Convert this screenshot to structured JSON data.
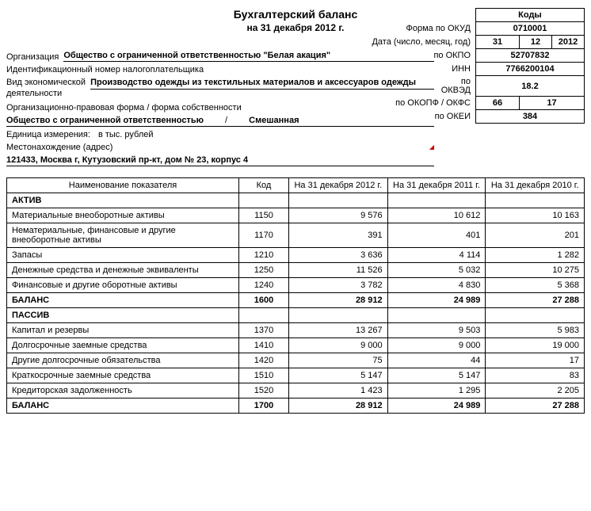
{
  "title": "Бухгалтерский баланс",
  "subtitle": "на 31 декабря 2012 г.",
  "codes_header": "Коды",
  "labels": {
    "form_okud": "Форма по ОКУД",
    "date": "Дата (число, месяц, год)",
    "org": "Организация",
    "okpo": "по ОКПО",
    "inn_label": "Идентификационный номер налогоплательщика",
    "inn": "ИНН",
    "activity1": "Вид экономической",
    "activity2": "деятельности",
    "okved_by": "по",
    "okved": "ОКВЭД",
    "legal_form": "Организационно-правовая форма / форма собственности",
    "okopf_okfs": "по ОКОПФ / ОКФС",
    "unit": "Единица измерения:",
    "okei": "по ОКЕИ",
    "address": "Местонахождение (адрес)"
  },
  "values": {
    "okud": "0710001",
    "date_d": "31",
    "date_m": "12",
    "date_y": "2012",
    "org_name": "Общество с ограниченной ответственностью \"Белая акация\"",
    "okpo": "52707832",
    "inn": "7766200104",
    "activity": "Производство одежды из текстильных материалов и аксессуаров одежды",
    "okved": "18.2",
    "legal_form_value": "Общество с ограниченной ответственностью",
    "ownership_sep": "/",
    "ownership": "Смешанная",
    "okopf": "66",
    "okfs": "17",
    "unit_value": "в тыс. рублей",
    "okei": "384",
    "address_value": "121433, Москва г, Кутузовский пр-кт, дом № 23, корпус 4"
  },
  "table": {
    "headers": {
      "name": "Наименование показателя",
      "code": "Код",
      "c2012": "На 31 декабря 2012 г.",
      "c2011": "На 31 декабря 2011 г.",
      "c2010": "На 31 декабря 2010 г."
    },
    "sections": [
      {
        "title": "АКТИВ",
        "rows": [
          {
            "name": "Материальные внеоборотные активы",
            "code": "1150",
            "v": [
              "9 576",
              "10 612",
              "10 163"
            ]
          },
          {
            "name": "Нематериальные, финансовые и другие внеоборотные активы",
            "code": "1170",
            "v": [
              "391",
              "401",
              "201"
            ]
          },
          {
            "name": "Запасы",
            "code": "1210",
            "v": [
              "3 636",
              "4 114",
              "1 282"
            ]
          },
          {
            "name": "Денежные средства и денежные эквиваленты",
            "code": "1250",
            "v": [
              "11 526",
              "5 032",
              "10 275"
            ]
          },
          {
            "name": "Финансовые и другие оборотные активы",
            "code": "1240",
            "v": [
              "3 782",
              "4 830",
              "5 368"
            ]
          }
        ],
        "balance": {
          "name": "БАЛАНС",
          "code": "1600",
          "v": [
            "28 912",
            "24 989",
            "27 288"
          ]
        }
      },
      {
        "title": "ПАССИВ",
        "rows": [
          {
            "name": "Капитал и резервы",
            "code": "1370",
            "v": [
              "13 267",
              "9 503",
              "5 983"
            ]
          },
          {
            "name": "Долгосрочные заемные средства",
            "code": "1410",
            "v": [
              "9 000",
              "9 000",
              "19 000"
            ]
          },
          {
            "name": "Другие долгосрочные обязательства",
            "code": "1420",
            "v": [
              "75",
              "44",
              "17"
            ]
          },
          {
            "name": "Краткосрочные заемные средства",
            "code": "1510",
            "v": [
              "5 147",
              "5 147",
              "83"
            ]
          },
          {
            "name": "Кредиторская задолженность",
            "code": "1520",
            "v": [
              "1 423",
              "1 295",
              "2 205"
            ]
          }
        ],
        "balance": {
          "name": "БАЛАНС",
          "code": "1700",
          "v": [
            "28 912",
            "24 989",
            "27 288"
          ]
        }
      }
    ]
  }
}
